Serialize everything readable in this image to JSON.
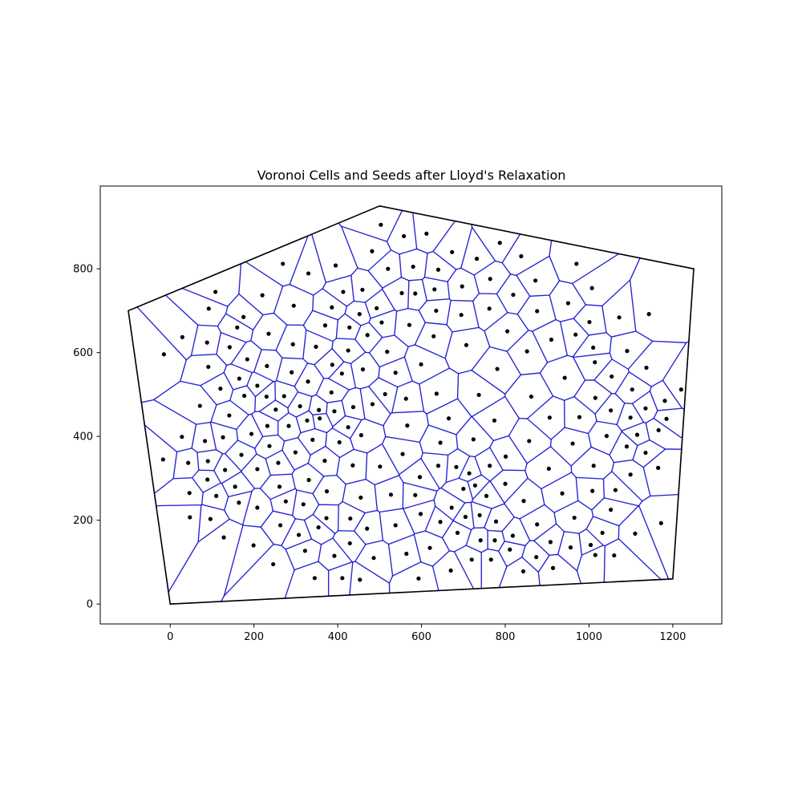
{
  "chart_data": {
    "type": "scatter",
    "title": "Voronoi Cells and Seeds after Lloyd's Relaxation",
    "xlabel": "",
    "ylabel": "",
    "xlim": [
      -167,
      1317
    ],
    "ylim": [
      -47.5,
      997.5
    ],
    "xticks": [
      0,
      200,
      400,
      600,
      800,
      1000,
      1200
    ],
    "yticks": [
      0,
      200,
      400,
      600,
      800
    ],
    "grid": false,
    "legend": "none",
    "colors": {
      "boundary": "#000000",
      "cell_edge": "#0000cc",
      "seed": "#000000"
    },
    "boundary_polygon": [
      [
        0,
        0
      ],
      [
        1200,
        60
      ],
      [
        1250,
        800
      ],
      [
        500,
        950
      ],
      [
        -100,
        700
      ]
    ],
    "seeds": [
      [
        503,
        905
      ],
      [
        558,
        878
      ],
      [
        612,
        884
      ],
      [
        269,
        812
      ],
      [
        395,
        808
      ],
      [
        482,
        842
      ],
      [
        673,
        840
      ],
      [
        732,
        824
      ],
      [
        787,
        862
      ],
      [
        838,
        830
      ],
      [
        970,
        812
      ],
      [
        330,
        789
      ],
      [
        520,
        800
      ],
      [
        580,
        805
      ],
      [
        640,
        798
      ],
      [
        108,
        745
      ],
      [
        160,
        660
      ],
      [
        220,
        737
      ],
      [
        295,
        712
      ],
      [
        386,
        708
      ],
      [
        413,
        745
      ],
      [
        459,
        750
      ],
      [
        452,
        692
      ],
      [
        493,
        706
      ],
      [
        505,
        672
      ],
      [
        553,
        742
      ],
      [
        585,
        741
      ],
      [
        631,
        751
      ],
      [
        697,
        758
      ],
      [
        764,
        776
      ],
      [
        819,
        738
      ],
      [
        872,
        772
      ],
      [
        950,
        718
      ],
      [
        1007,
        754
      ],
      [
        92,
        705
      ],
      [
        175,
        685
      ],
      [
        235,
        645
      ],
      [
        293,
        620
      ],
      [
        348,
        614
      ],
      [
        370,
        665
      ],
      [
        428,
        660
      ],
      [
        425,
        605
      ],
      [
        471,
        642
      ],
      [
        518,
        602
      ],
      [
        571,
        666
      ],
      [
        635,
        700
      ],
      [
        629,
        639
      ],
      [
        695,
        690
      ],
      [
        762,
        705
      ],
      [
        805,
        651
      ],
      [
        876,
        699
      ],
      [
        1001,
        673
      ],
      [
        -15,
        596
      ],
      [
        29,
        637
      ],
      [
        88,
        624
      ],
      [
        142,
        613
      ],
      [
        184,
        584
      ],
      [
        231,
        568
      ],
      [
        290,
        553
      ],
      [
        329,
        531
      ],
      [
        387,
        571
      ],
      [
        410,
        550
      ],
      [
        460,
        560
      ],
      [
        538,
        552
      ],
      [
        599,
        572
      ],
      [
        707,
        618
      ],
      [
        781,
        561
      ],
      [
        852,
        603
      ],
      [
        910,
        631
      ],
      [
        968,
        643
      ],
      [
        1010,
        612
      ],
      [
        1072,
        684
      ],
      [
        1143,
        692
      ],
      [
        1091,
        604
      ],
      [
        91,
        566
      ],
      [
        120,
        514
      ],
      [
        165,
        538
      ],
      [
        208,
        521
      ],
      [
        230,
        495
      ],
      [
        272,
        496
      ],
      [
        310,
        472
      ],
      [
        355,
        463
      ],
      [
        385,
        505
      ],
      [
        437,
        470
      ],
      [
        483,
        477
      ],
      [
        513,
        501
      ],
      [
        563,
        490
      ],
      [
        636,
        502
      ],
      [
        737,
        499
      ],
      [
        862,
        495
      ],
      [
        942,
        540
      ],
      [
        1014,
        577
      ],
      [
        1054,
        543
      ],
      [
        1103,
        512
      ],
      [
        1137,
        564
      ],
      [
        1181,
        485
      ],
      [
        1220,
        512
      ],
      [
        71,
        473
      ],
      [
        141,
        450
      ],
      [
        177,
        497
      ],
      [
        194,
        406
      ],
      [
        232,
        425
      ],
      [
        252,
        464
      ],
      [
        283,
        425
      ],
      [
        327,
        438
      ],
      [
        357,
        443
      ],
      [
        392,
        460
      ],
      [
        425,
        422
      ],
      [
        456,
        403
      ],
      [
        566,
        426
      ],
      [
        665,
        443
      ],
      [
        774,
        438
      ],
      [
        906,
        445
      ],
      [
        977,
        446
      ],
      [
        1015,
        492
      ],
      [
        1052,
        462
      ],
      [
        1099,
        445
      ],
      [
        1135,
        467
      ],
      [
        1185,
        442
      ],
      [
        1166,
        415
      ],
      [
        1115,
        404
      ],
      [
        28,
        399
      ],
      [
        83,
        389
      ],
      [
        126,
        398
      ],
      [
        170,
        356
      ],
      [
        237,
        377
      ],
      [
        258,
        337
      ],
      [
        299,
        362
      ],
      [
        340,
        392
      ],
      [
        369,
        342
      ],
      [
        404,
        386
      ],
      [
        436,
        331
      ],
      [
        501,
        328
      ],
      [
        555,
        358
      ],
      [
        645,
        385
      ],
      [
        724,
        393
      ],
      [
        857,
        389
      ],
      [
        961,
        383
      ],
      [
        1042,
        401
      ],
      [
        1090,
        376
      ],
      [
        1135,
        361
      ],
      [
        1165,
        325
      ],
      [
        -17,
        345
      ],
      [
        43,
        337
      ],
      [
        90,
        341
      ],
      [
        131,
        320
      ],
      [
        155,
        280
      ],
      [
        208,
        322
      ],
      [
        261,
        280
      ],
      [
        331,
        296
      ],
      [
        374,
        269
      ],
      [
        455,
        254
      ],
      [
        527,
        261
      ],
      [
        596,
        303
      ],
      [
        640,
        330
      ],
      [
        683,
        327
      ],
      [
        714,
        312
      ],
      [
        763,
        330
      ],
      [
        801,
        352
      ],
      [
        904,
        323
      ],
      [
        1011,
        330
      ],
      [
        1099,
        309
      ],
      [
        46,
        265
      ],
      [
        89,
        297
      ],
      [
        110,
        258
      ],
      [
        164,
        242
      ],
      [
        208,
        230
      ],
      [
        276,
        245
      ],
      [
        318,
        238
      ],
      [
        373,
        205
      ],
      [
        430,
        204
      ],
      [
        470,
        180
      ],
      [
        538,
        188
      ],
      [
        598,
        215
      ],
      [
        645,
        196
      ],
      [
        705,
        208
      ],
      [
        755,
        258
      ],
      [
        800,
        287
      ],
      [
        844,
        246
      ],
      [
        936,
        264
      ],
      [
        1008,
        270
      ],
      [
        1063,
        272
      ],
      [
        47,
        207
      ],
      [
        96,
        203
      ],
      [
        128,
        159
      ],
      [
        199,
        140
      ],
      [
        263,
        188
      ],
      [
        307,
        165
      ],
      [
        354,
        183
      ],
      [
        392,
        115
      ],
      [
        429,
        145
      ],
      [
        486,
        110
      ],
      [
        564,
        120
      ],
      [
        620,
        134
      ],
      [
        686,
        170
      ],
      [
        739,
        212
      ],
      [
        778,
        197
      ],
      [
        818,
        163
      ],
      [
        876,
        190
      ],
      [
        908,
        148
      ],
      [
        965,
        206
      ],
      [
        1004,
        141
      ],
      [
        1032,
        170
      ],
      [
        1052,
        225
      ],
      [
        1110,
        168
      ],
      [
        1172,
        193
      ],
      [
        246,
        95
      ],
      [
        322,
        127
      ],
      [
        345,
        62
      ],
      [
        411,
        62
      ],
      [
        453,
        58
      ],
      [
        593,
        61
      ],
      [
        670,
        80
      ],
      [
        720,
        106
      ],
      [
        766,
        106
      ],
      [
        811,
        130
      ],
      [
        843,
        78
      ],
      [
        874,
        112
      ],
      [
        914,
        86
      ],
      [
        956,
        135
      ],
      [
        1015,
        117
      ],
      [
        1060,
        116
      ],
      [
        741,
        152
      ],
      [
        775,
        152
      ],
      [
        700,
        275
      ],
      [
        728,
        283
      ],
      [
        672,
        230
      ],
      [
        585,
        260
      ]
    ]
  }
}
